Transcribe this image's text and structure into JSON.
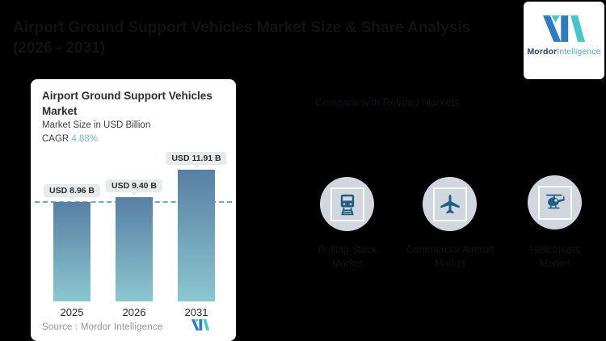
{
  "colors": {
    "background": "#000000",
    "brand_blue": "#2e7bc0",
    "brand_teal": "#49c6c8",
    "bar_top": "#587fa4",
    "bar_bottom": "#8bc7cf",
    "cagr_value_blue": "#7fb5da",
    "icon_glyph": "#1e5f83",
    "icon_circle_bg": "#d2d6de",
    "badge_bg": "#e8eaeb",
    "dashed_line": "#76a3c6"
  },
  "header": {
    "title": "Airport Ground Support Vehicles Market Size & Share Analysis\n(2026 - 2031)"
  },
  "brand": {
    "name_bold": "Mordor",
    "name_light": "Intelligence"
  },
  "chart_card": {
    "title": "Airport Ground Support Vehicles\nMarket",
    "subtitle": "Market Size in USD Billion",
    "cagr_label": "CAGR",
    "cagr_value": "4.88%",
    "source": "Source :  Mordor Intelligence"
  },
  "chart_data": {
    "type": "bar",
    "title": "Airport Ground Support Vehicles Market",
    "ylabel": "Market Size in USD Billion",
    "categories": [
      "2025",
      "2026",
      "2031"
    ],
    "values": [
      8.96,
      9.4,
      11.91
    ],
    "value_labels": [
      "USD 8.96 B",
      "USD 9.40 B",
      "USD 11.91 B"
    ],
    "cagr_percent": 4.88,
    "reference_line": 8.96,
    "ylim": [
      0,
      13.1
    ],
    "grid": false,
    "legend": false,
    "bar_gradient": [
      "#587fa4",
      "#8bc7cf"
    ]
  },
  "right_panel": {
    "heading": "Compare with Related Markets",
    "items": [
      {
        "icon": "train-icon",
        "label": "Rolling Stock\nMarket"
      },
      {
        "icon": "airplane-icon",
        "label": "Commercial Aircraft\nMarket"
      },
      {
        "icon": "helicopter-icon",
        "label": "Helicopters\nMarket"
      }
    ]
  }
}
